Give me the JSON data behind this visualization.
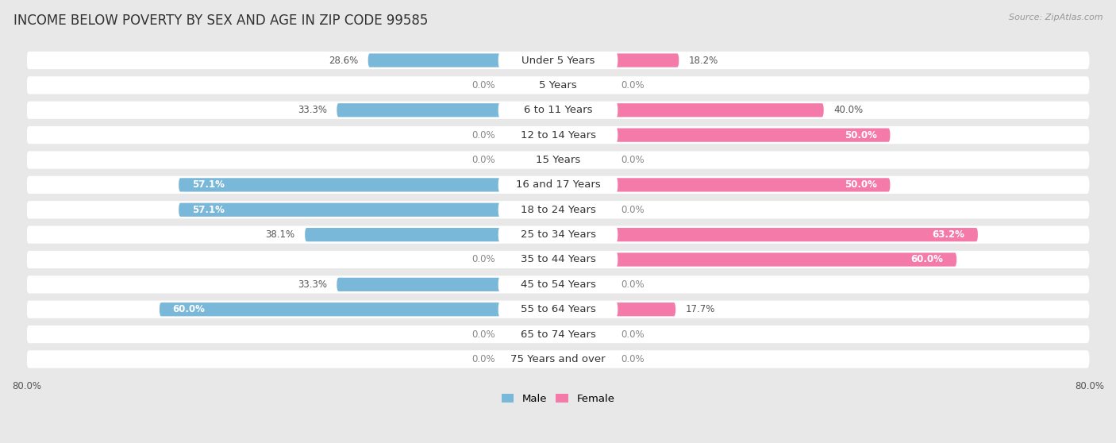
{
  "title": "INCOME BELOW POVERTY BY SEX AND AGE IN ZIP CODE 99585",
  "source": "Source: ZipAtlas.com",
  "categories": [
    "Under 5 Years",
    "5 Years",
    "6 to 11 Years",
    "12 to 14 Years",
    "15 Years",
    "16 and 17 Years",
    "18 to 24 Years",
    "25 to 34 Years",
    "35 to 44 Years",
    "45 to 54 Years",
    "55 to 64 Years",
    "65 to 74 Years",
    "75 Years and over"
  ],
  "male_values": [
    28.6,
    0.0,
    33.3,
    0.0,
    0.0,
    57.1,
    57.1,
    38.1,
    0.0,
    33.3,
    60.0,
    0.0,
    0.0
  ],
  "female_values": [
    18.2,
    0.0,
    40.0,
    50.0,
    0.0,
    50.0,
    0.0,
    63.2,
    60.0,
    0.0,
    17.7,
    0.0,
    0.0
  ],
  "male_color": "#7ab8d9",
  "male_color_light": "#b8d9ee",
  "female_color": "#f47aaa",
  "female_color_light": "#f7b8d3",
  "male_label": "Male",
  "female_label": "Female",
  "axis_max": 80.0,
  "bg_color": "#e8e8e8",
  "row_bg_color": "#ffffff",
  "label_bg_color": "#ffffff",
  "title_fontsize": 12,
  "cat_fontsize": 9.5,
  "value_fontsize": 8.5,
  "source_fontsize": 8,
  "stub_size": 8.0
}
